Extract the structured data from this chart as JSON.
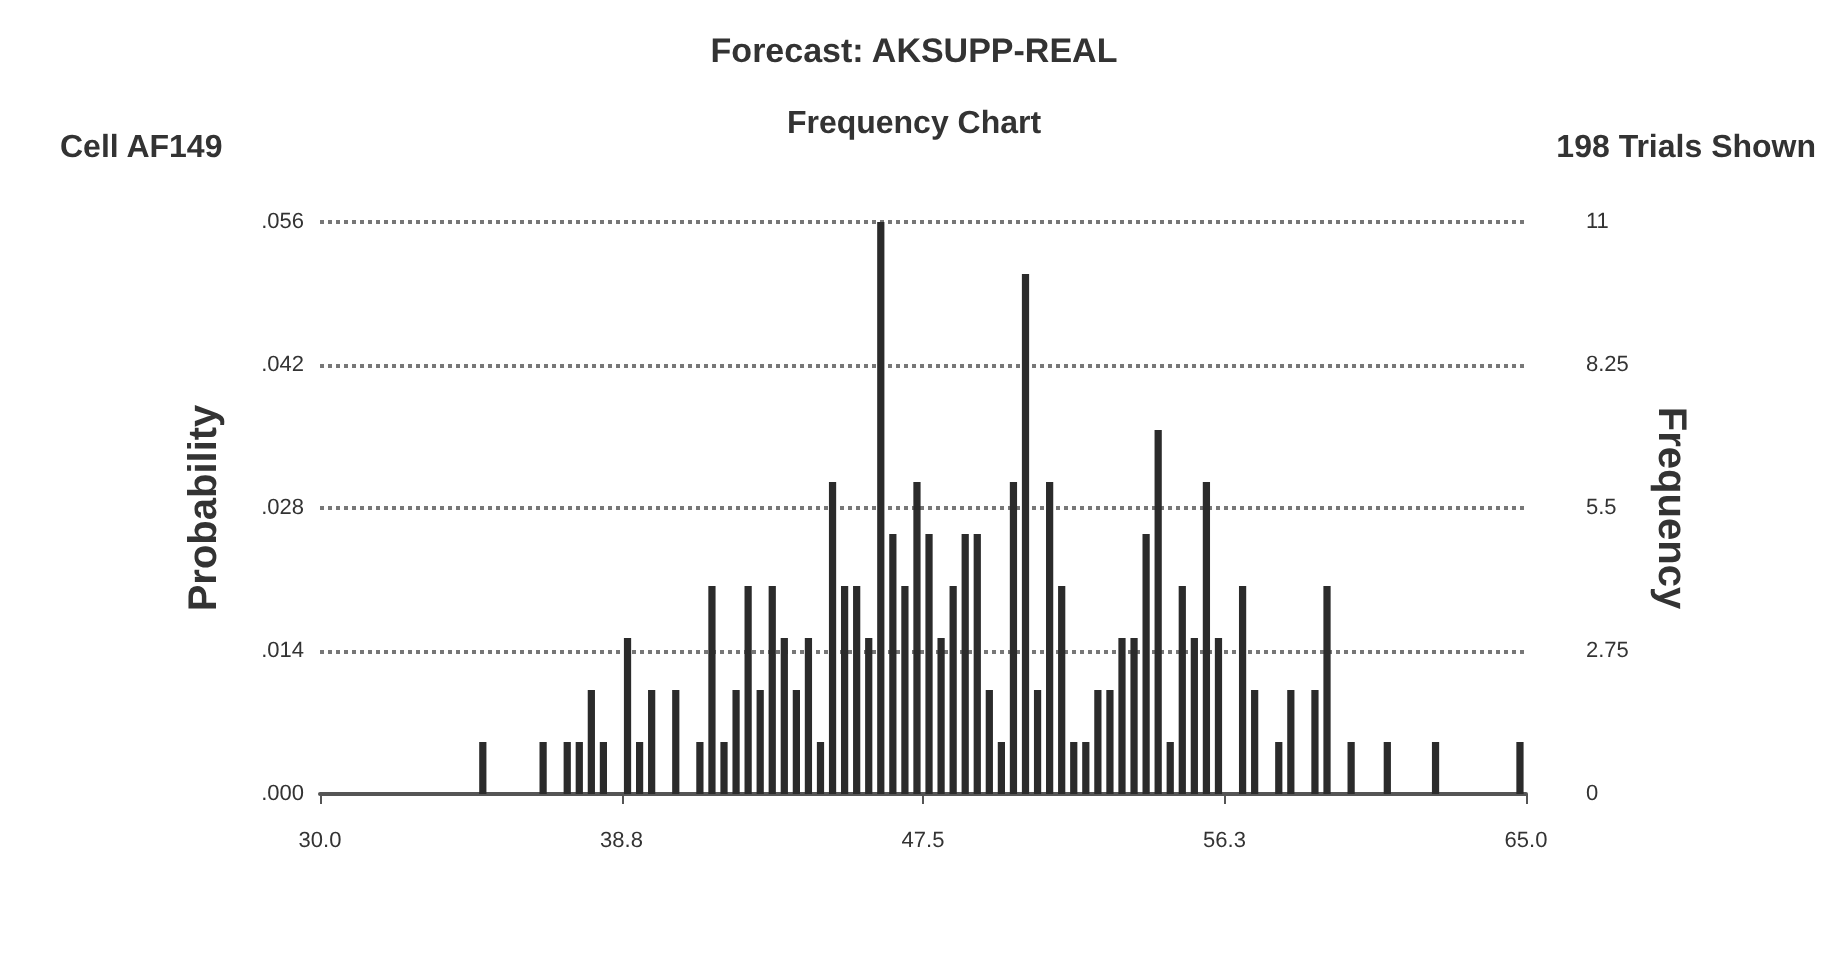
{
  "chart_data": {
    "type": "histogram",
    "title": "Forecast: AKSUPP-REAL",
    "subtitle": "Frequency Chart",
    "annotations": [
      "Cell AF149",
      "198 Trials Shown"
    ],
    "ylabel": "Probability",
    "y2label": "Frequency",
    "bins": [
      30,
      30.35,
      30.7,
      31.05,
      31.4,
      31.75,
      32.1,
      32.45,
      32.8,
      33.15,
      33.5,
      33.85,
      34.2,
      34.55,
      34.9,
      35.25,
      35.6,
      35.95,
      36.3,
      36.65,
      37,
      37.35,
      37.7,
      38.05,
      38.4,
      38.75,
      39.1,
      39.45,
      39.8,
      40.15,
      40.5,
      40.85,
      41.2,
      41.55,
      41.9,
      42.25,
      42.6,
      42.95,
      43.3,
      43.65,
      44,
      44.35,
      44.7,
      45.05,
      45.4,
      45.75,
      46.1,
      46.45,
      46.8,
      47.15,
      47.5,
      47.85,
      48.2,
      48.55,
      48.9,
      49.25,
      49.6,
      49.95,
      50.3,
      50.65,
      51,
      51.35,
      51.7,
      52.05,
      52.4,
      52.75,
      53.1,
      53.45,
      53.8,
      54.15,
      54.5,
      54.85,
      55.2,
      55.55,
      55.9,
      56.25,
      56.6,
      56.95,
      57.3,
      57.65,
      58,
      58.35,
      58.7,
      59.05,
      59.4,
      59.75,
      60.1,
      60.45,
      60.8,
      61.15,
      61.5,
      61.85,
      62.2,
      62.55,
      62.9,
      63.25,
      63.6,
      63.95,
      64.3,
      64.65,
      65
    ],
    "series": [
      {
        "axis": "y2",
        "color": "#2b2b2b",
        "values": [
          0,
          0,
          0,
          0,
          0,
          0,
          0,
          0,
          0,
          0,
          0,
          0,
          0,
          1,
          0,
          0,
          0,
          0,
          1,
          0,
          1,
          1,
          2,
          1,
          0,
          3,
          1,
          2,
          0,
          2,
          0,
          1,
          4,
          1,
          2,
          4,
          2,
          4,
          3,
          2,
          3,
          1,
          6,
          4,
          4,
          3,
          11,
          5,
          4,
          6,
          5,
          3,
          4,
          5,
          5,
          2,
          1,
          6,
          10,
          2,
          6,
          4,
          1,
          1,
          2,
          2,
          3,
          3,
          5,
          7,
          1,
          4,
          3,
          6,
          3,
          0,
          4,
          2,
          0,
          1,
          2,
          0,
          2,
          4,
          0,
          1,
          0,
          0,
          1,
          0,
          0,
          0,
          1,
          0,
          0,
          0,
          0,
          0,
          0,
          1
        ]
      }
    ],
    "xlim": [
      30,
      65
    ],
    "xticks": [
      {
        "value": 30,
        "label": "30.0"
      },
      {
        "value": 38.75,
        "label": "38.8"
      },
      47.5,
      {
        "value": 56.25,
        "label": "56.3"
      },
      {
        "value": 65,
        "label": "65.0"
      }
    ],
    "ylim": [
      0,
      0.056
    ],
    "yticks": [
      {
        "value": 0,
        "label": ".000"
      },
      {
        "value": 0.014,
        "label": ".014"
      },
      {
        "value": 0.028,
        "label": ".028"
      },
      {
        "value": 0.042,
        "label": ".042"
      },
      {
        "value": 0.056,
        "label": ".056"
      }
    ],
    "y2lim": [
      0,
      11
    ],
    "y2ticks": [
      0,
      2.75,
      5.5,
      8.25,
      11
    ],
    "grid": "y"
  }
}
